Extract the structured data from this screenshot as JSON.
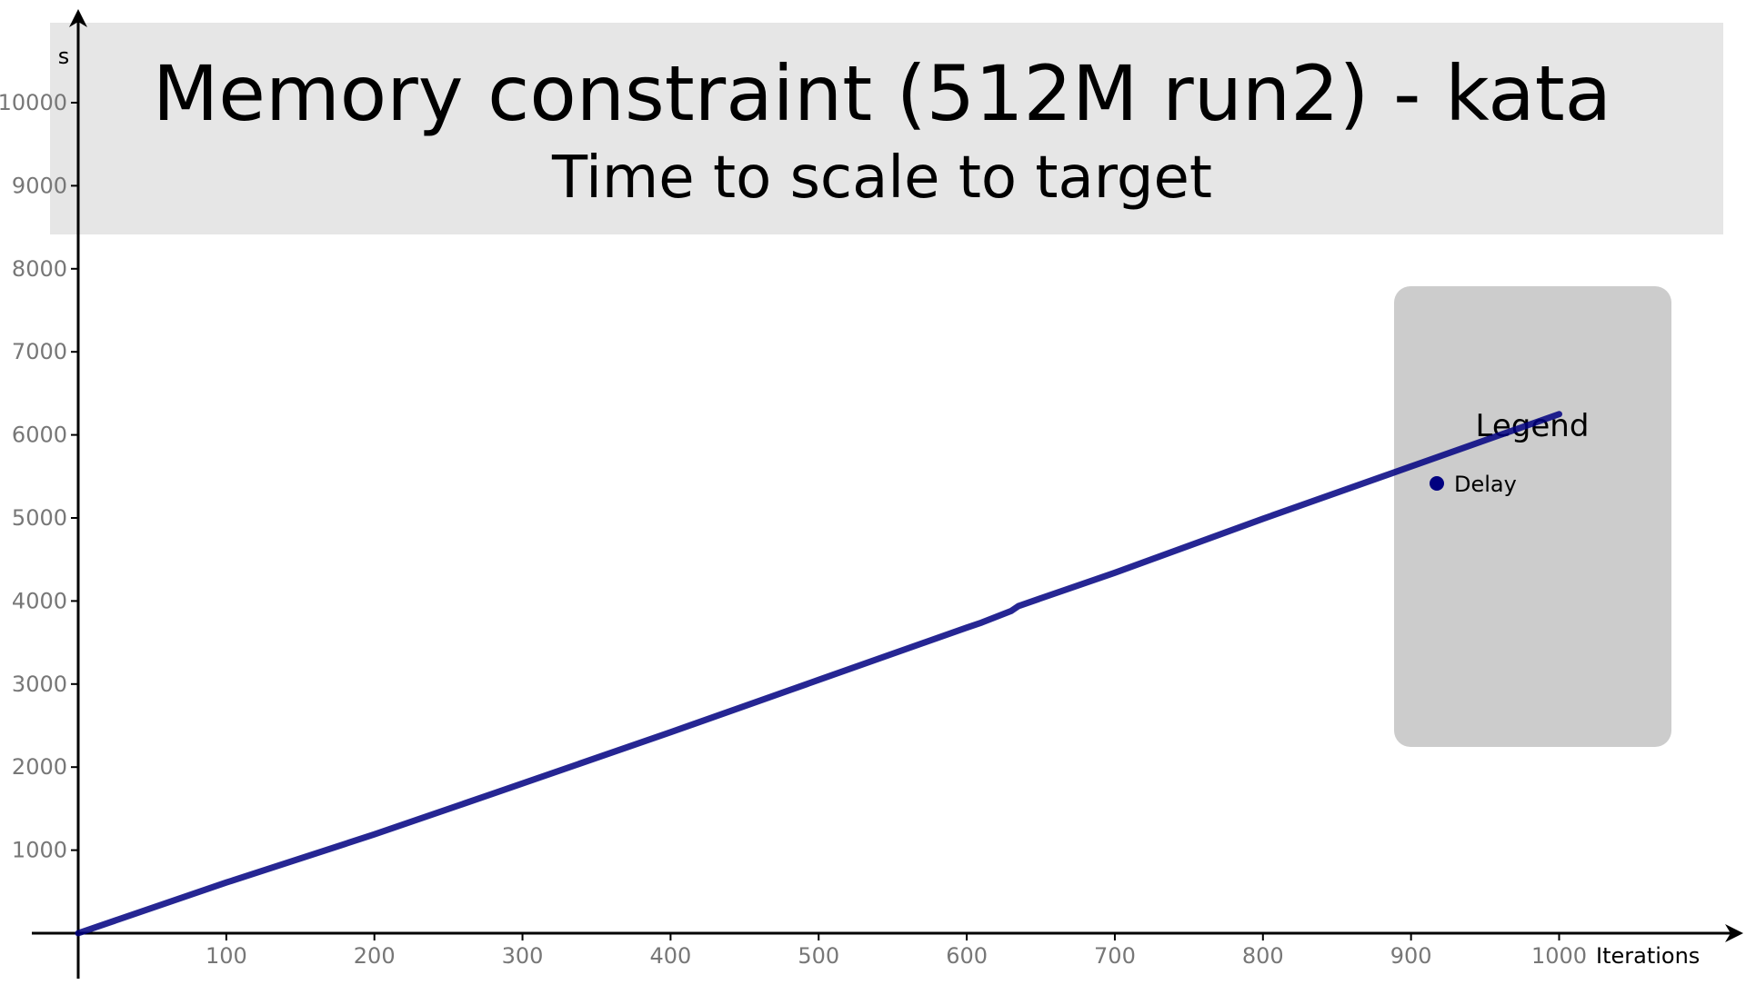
{
  "chart_data": {
    "type": "line",
    "title": "Memory constraint (512M run2) - kata",
    "subtitle": "Time to scale to target",
    "xlabel": "Iterations",
    "ylabel": "s",
    "xlim": [
      0,
      1100
    ],
    "ylim": [
      0,
      10500
    ],
    "x_ticks": [
      100,
      200,
      300,
      400,
      500,
      600,
      700,
      800,
      900,
      1000
    ],
    "y_ticks": [
      1000,
      2000,
      3000,
      4000,
      5000,
      6000,
      7000,
      8000,
      9000,
      10000
    ],
    "grid": false,
    "legend": {
      "title": "Legend",
      "position": "right",
      "entries": [
        "Delay"
      ]
    },
    "series": [
      {
        "name": "Delay",
        "color": "#000080",
        "x": [
          0,
          100,
          200,
          280,
          400,
          500,
          600,
          610,
          630,
          635,
          700,
          800,
          900,
          1000
        ],
        "y": [
          0,
          610,
          1190,
          1680,
          2420,
          3050,
          3680,
          3740,
          3880,
          3940,
          4340,
          4990,
          5620,
          6250
        ]
      }
    ]
  },
  "colors": {
    "title_band": "#e6e6e6",
    "legend_box": "#cccccc",
    "axis": "#000000",
    "tick_label": "#777777",
    "series": "#000080"
  }
}
